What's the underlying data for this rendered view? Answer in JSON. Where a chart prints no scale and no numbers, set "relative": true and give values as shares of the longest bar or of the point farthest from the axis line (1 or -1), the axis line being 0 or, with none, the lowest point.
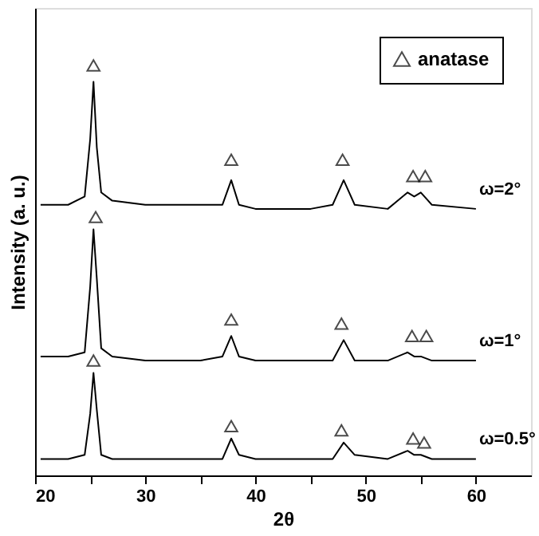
{
  "chart_data": {
    "type": "line",
    "relative": true,
    "xlabel": "2θ",
    "ylabel": "Intensity (a. u.)",
    "xlim": [
      20,
      65
    ],
    "xticks": [
      20,
      {
        "value": 25,
        "label": null
      },
      30,
      {
        "value": 35,
        "label": null
      },
      40,
      {
        "value": 45,
        "label": null
      },
      50,
      {
        "value": 55,
        "label": null
      },
      60
    ],
    "legend": "top right",
    "grid": false,
    "series": [
      {
        "name": "ω=2°",
        "color": "#000000",
        "x": [
          20.5,
          23,
          24.5,
          25,
          25.3,
          25.6,
          26,
          27,
          30,
          35,
          37,
          37.8,
          38.5,
          40,
          45,
          47,
          48,
          49,
          52,
          53.8,
          54.4,
          55,
          56,
          60
        ],
        "values": [
          0.66,
          0.66,
          0.68,
          0.82,
          0.96,
          0.8,
          0.69,
          0.67,
          0.66,
          0.66,
          0.66,
          0.72,
          0.66,
          0.65,
          0.65,
          0.66,
          0.72,
          0.66,
          0.65,
          0.69,
          0.68,
          0.69,
          0.66,
          0.65
        ]
      },
      {
        "name": "ω=1°",
        "color": "#000000",
        "x": [
          20.5,
          23,
          24.5,
          25,
          25.3,
          25.6,
          26,
          27,
          30,
          35,
          37,
          37.8,
          38.5,
          40,
          45,
          47,
          48,
          49,
          52,
          53.8,
          54.4,
          55,
          56,
          60
        ],
        "values": [
          0.29,
          0.29,
          0.3,
          0.46,
          0.6,
          0.48,
          0.31,
          0.29,
          0.28,
          0.28,
          0.29,
          0.34,
          0.29,
          0.28,
          0.28,
          0.28,
          0.33,
          0.28,
          0.28,
          0.3,
          0.29,
          0.29,
          0.28,
          0.28
        ]
      },
      {
        "name": "ω=0.5°",
        "color": "#000000",
        "x": [
          20.5,
          23,
          24.5,
          25,
          25.3,
          25.6,
          26,
          27,
          30,
          35,
          37,
          37.8,
          38.5,
          40,
          45,
          47,
          48,
          49,
          52,
          53.8,
          54.4,
          55,
          56,
          60
        ],
        "values": [
          0.04,
          0.04,
          0.05,
          0.15,
          0.25,
          0.16,
          0.05,
          0.04,
          0.04,
          0.04,
          0.04,
          0.09,
          0.05,
          0.04,
          0.04,
          0.04,
          0.08,
          0.05,
          0.04,
          0.06,
          0.05,
          0.05,
          0.04,
          0.04
        ]
      },
      {
        "name": "anatase",
        "type": "scatter",
        "marker": "triangle",
        "color": "#000000",
        "x": [
          25.3,
          37.8,
          47.9,
          54.3,
          55.4,
          25.5,
          37.8,
          47.8,
          54.2,
          55.5,
          25.3,
          37.8,
          47.8,
          54.3,
          55.3
        ],
        "values": [
          1.0,
          0.77,
          0.77,
          0.73,
          0.73,
          0.63,
          0.38,
          0.37,
          0.34,
          0.34,
          0.28,
          0.12,
          0.11,
          0.09,
          0.08
        ]
      }
    ]
  }
}
